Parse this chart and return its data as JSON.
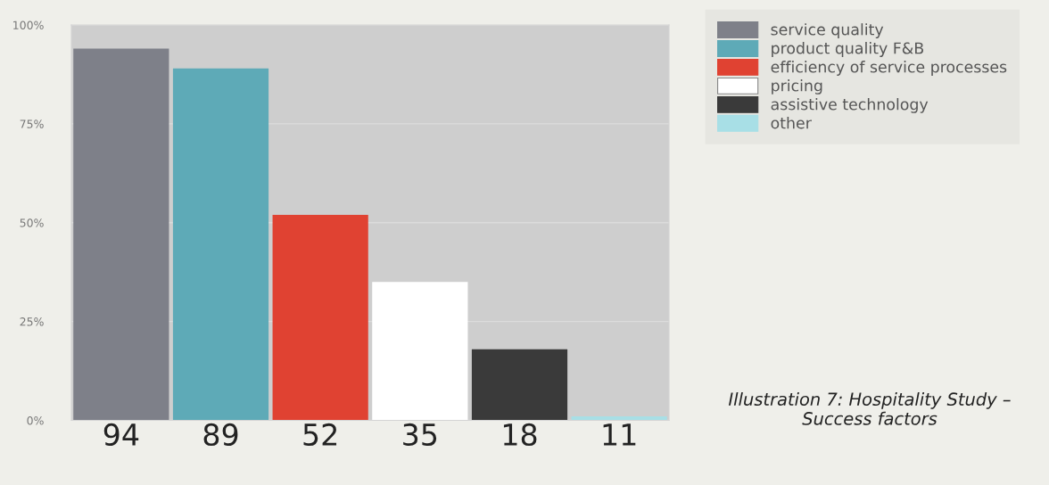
{
  "chart_data": {
    "type": "bar",
    "categories": [
      "94",
      "89",
      "52",
      "35",
      "18",
      "11"
    ],
    "series": [
      {
        "name": "service quality",
        "color": "#7e8089",
        "values": [
          94,
          null,
          null,
          null,
          null,
          null
        ]
      },
      {
        "name": "product quality F&B",
        "color": "#5eaab7",
        "values": [
          null,
          89,
          null,
          null,
          null,
          null
        ]
      },
      {
        "name": "efficiency of service processes",
        "color": "#e04232",
        "values": [
          null,
          null,
          52,
          null,
          null,
          null
        ]
      },
      {
        "name": "pricing",
        "color": "#ffffff",
        "values": [
          null,
          null,
          null,
          35,
          null,
          null
        ]
      },
      {
        "name": "assistive technology",
        "color": "#3a3a3a",
        "values": [
          null,
          null,
          null,
          null,
          18,
          null
        ]
      },
      {
        "name": "other",
        "color": "#a8dfe6",
        "values": [
          null,
          null,
          null,
          null,
          null,
          1
        ]
      }
    ],
    "ylim": [
      0,
      100
    ],
    "yticks": [
      {
        "value": 0,
        "label": "0%"
      },
      {
        "value": 25,
        "label": "25%"
      },
      {
        "value": 50,
        "label": "50%"
      },
      {
        "value": 75,
        "label": "75%"
      },
      {
        "value": 100,
        "label": "100%"
      }
    ],
    "grid": "y",
    "legend": "top right",
    "annotations": [
      "Illustration 7: Hospitality Study – Success factors"
    ]
  }
}
